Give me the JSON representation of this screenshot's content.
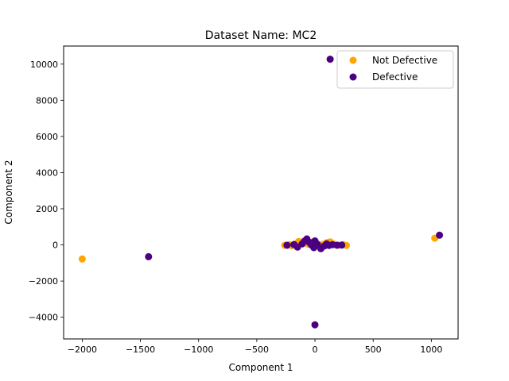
{
  "chart_data": {
    "type": "scatter",
    "title": "Dataset Name: MC2",
    "xlabel": "Component 1",
    "ylabel": "Component 2",
    "xlim": [
      -2160,
      1230
    ],
    "ylim": [
      -5200,
      11000
    ],
    "xticks": [
      -2000,
      -1500,
      -1000,
      -500,
      0,
      500,
      1000
    ],
    "yticks": [
      -4000,
      -2000,
      0,
      2000,
      4000,
      6000,
      8000,
      10000
    ],
    "grid": false,
    "legend_position": "top-right",
    "series": [
      {
        "name": "Not Defective",
        "color": "#FFA500",
        "points": [
          [
            -2000,
            -780
          ],
          [
            1030,
            370
          ],
          [
            -260,
            -20
          ],
          [
            -220,
            10
          ],
          [
            -170,
            60
          ],
          [
            -140,
            190
          ],
          [
            -100,
            110
          ],
          [
            -60,
            40
          ],
          [
            -20,
            160
          ],
          [
            10,
            60
          ],
          [
            40,
            -60
          ],
          [
            70,
            30
          ],
          [
            100,
            120
          ],
          [
            130,
            170
          ],
          [
            160,
            60
          ],
          [
            200,
            -10
          ],
          [
            240,
            20
          ],
          [
            270,
            -30
          ],
          [
            -200,
            -40
          ],
          [
            60,
            -120
          ]
        ]
      },
      {
        "name": "Defective",
        "color": "#4B0082",
        "points": [
          [
            130,
            10270
          ],
          [
            1070,
            540
          ],
          [
            -1430,
            -650
          ],
          [
            0,
            -4420
          ],
          [
            -240,
            -20
          ],
          [
            -150,
            -120
          ],
          [
            -110,
            60
          ],
          [
            -90,
            210
          ],
          [
            -70,
            330
          ],
          [
            -50,
            150
          ],
          [
            -30,
            0
          ],
          [
            -10,
            -150
          ],
          [
            20,
            40
          ],
          [
            50,
            -210
          ],
          [
            80,
            -60
          ],
          [
            100,
            60
          ],
          [
            120,
            -30
          ],
          [
            150,
            10
          ],
          [
            190,
            -20
          ],
          [
            230,
            -10
          ],
          [
            -180,
            20
          ],
          [
            0,
            220
          ]
        ]
      }
    ]
  }
}
